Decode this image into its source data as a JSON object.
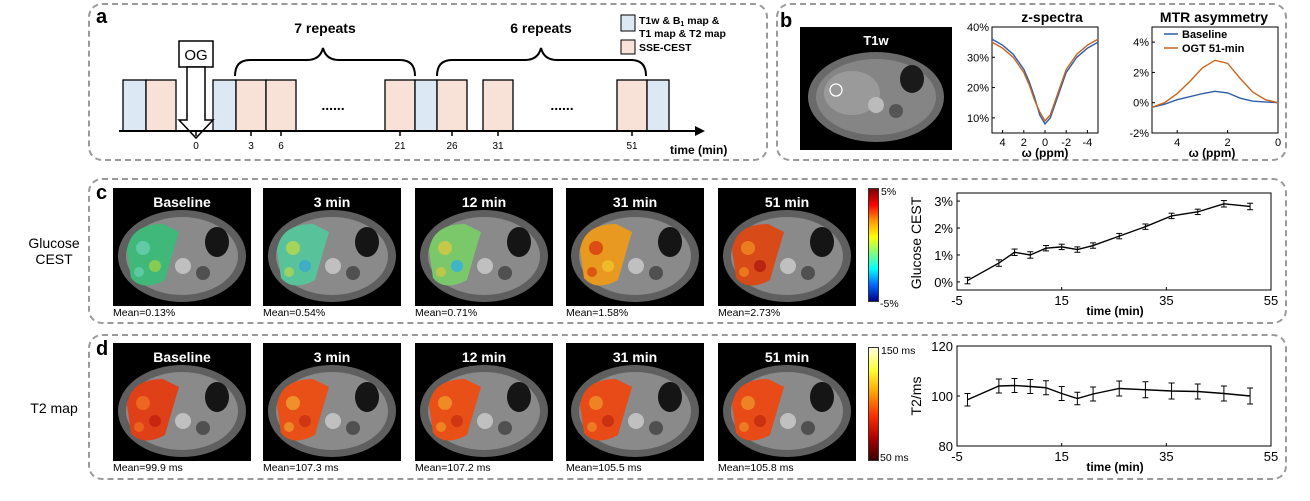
{
  "panel_a": {
    "label": "a",
    "og": "OG",
    "repeats1": "7 repeats",
    "repeats2": "6 repeats",
    "legend1_line1": "T1w & B",
    "legend1_sub": "1",
    "legend1_rest": " map &",
    "legend1_line2": "T1 map & T2 map",
    "legend2": "SSE-CEST",
    "dots": "......",
    "ticks": [
      "0",
      "3",
      "6",
      "21",
      "26",
      "31",
      "51"
    ],
    "time_label": "time (min)",
    "colors": {
      "blue": "#dce8f4",
      "pink": "#f8e1d6"
    }
  },
  "panel_b": {
    "label": "b",
    "img_title": "T1w",
    "zspec": {
      "title": "z-spectra",
      "xlabel": "ω (ppm)",
      "yticks": [
        "40%",
        "30%",
        "20%",
        "10%"
      ],
      "xticks": [
        "4",
        "2",
        "0",
        "-2",
        "-4"
      ]
    },
    "mtr": {
      "title": "MTR asymmetry",
      "xlabel": "ω (ppm)",
      "yticks": [
        "4%",
        "2%",
        "0%",
        "-2%"
      ],
      "xticks": [
        "4",
        "2",
        "0"
      ],
      "legend": [
        "Baseline",
        "OGT 51-min"
      ]
    }
  },
  "panel_c": {
    "label": "c",
    "row_label": [
      "Glucose",
      "CEST"
    ],
    "titles": [
      "Baseline",
      "3 min",
      "12 min",
      "31 min",
      "51 min"
    ],
    "means": [
      "Mean=0.13%",
      "Mean=0.54%",
      "Mean=0.71%",
      "Mean=1.58%",
      "Mean=2.73%"
    ],
    "cbar_top": "5%",
    "cbar_bottom": "-5%"
  },
  "panel_d": {
    "label": "d",
    "row_label": [
      "T2 map"
    ],
    "titles": [
      "Baseline",
      "3 min",
      "12 min",
      "31 min",
      "51 min"
    ],
    "means": [
      "Mean=99.9 ms",
      "Mean=107.3 ms",
      "Mean=107.2 ms",
      "Mean=105.5 ms",
      "Mean=105.8 ms"
    ],
    "cbar_top": "150 ms",
    "cbar_bottom": "50 ms"
  },
  "chart_data": [
    {
      "type": "line",
      "title": "z-spectra",
      "xlabel": "ω (ppm)",
      "ylabel": "",
      "xlim": [
        5,
        -5
      ],
      "ylim": [
        5,
        40
      ],
      "series": [
        {
          "name": "Baseline",
          "color": "#2c5ea8",
          "x": [
            5,
            4,
            3,
            2,
            1.5,
            1,
            0.5,
            0,
            -0.5,
            -1,
            -1.5,
            -2,
            -3,
            -4,
            -5
          ],
          "y": [
            36,
            34,
            31,
            26,
            22,
            17,
            11,
            8,
            10,
            15,
            20,
            25,
            30,
            33,
            35
          ]
        },
        {
          "name": "OGT 51-min",
          "color": "#c8641e",
          "x": [
            5,
            4,
            3,
            2,
            1.5,
            1,
            0.5,
            0,
            -0.5,
            -1,
            -1.5,
            -2,
            -3,
            -4,
            -5
          ],
          "y": [
            35,
            33,
            30,
            25,
            21,
            16,
            12,
            9,
            11,
            16,
            21,
            26,
            31,
            34,
            36
          ]
        }
      ]
    },
    {
      "type": "line",
      "title": "MTR asymmetry",
      "xlabel": "ω (ppm)",
      "ylabel": "",
      "xlim": [
        5,
        0
      ],
      "ylim": [
        -2,
        5
      ],
      "series": [
        {
          "name": "Baseline",
          "color": "#2c5ea8",
          "x": [
            5,
            4.5,
            4,
            3.5,
            3,
            2.5,
            2,
            1.5,
            1,
            0.5,
            0
          ],
          "y": [
            -0.3,
            -0.1,
            0.2,
            0.4,
            0.6,
            0.75,
            0.65,
            0.3,
            0.1,
            0.05,
            0
          ]
        },
        {
          "name": "OGT 51-min",
          "color": "#c8641e",
          "x": [
            5,
            4.5,
            4,
            3.5,
            3,
            2.5,
            2,
            1.5,
            1,
            0.5,
            0
          ],
          "y": [
            -0.3,
            0,
            0.6,
            1.4,
            2.3,
            2.8,
            2.6,
            1.6,
            0.7,
            0.2,
            0
          ]
        }
      ]
    },
    {
      "type": "line",
      "title": "",
      "xlabel": "time (min)",
      "ylabel": "Glucose CEST",
      "xlim": [
        -5,
        55
      ],
      "ylim": [
        -0.3,
        3.3
      ],
      "xticks": [
        "-5",
        "15",
        "35",
        "55"
      ],
      "yticks": [
        "0%",
        "1%",
        "2%",
        "3%"
      ],
      "x": [
        -3,
        3,
        6,
        9,
        12,
        15,
        18,
        21,
        26,
        31,
        36,
        41,
        46,
        51
      ],
      "y": [
        0.05,
        0.7,
        1.1,
        1.0,
        1.25,
        1.3,
        1.2,
        1.35,
        1.7,
        2.05,
        2.45,
        2.6,
        2.9,
        2.8
      ],
      "err": [
        0.12,
        0.12,
        0.12,
        0.12,
        0.1,
        0.1,
        0.1,
        0.1,
        0.1,
        0.1,
        0.1,
        0.1,
        0.12,
        0.12
      ]
    },
    {
      "type": "line",
      "title": "",
      "xlabel": "time (min)",
      "ylabel": "T2/ms",
      "xlim": [
        -5,
        55
      ],
      "ylim": [
        80,
        120
      ],
      "xticks": [
        "-5",
        "15",
        "35",
        "55"
      ],
      "yticks": [
        "80",
        "100",
        "120"
      ],
      "x": [
        -3,
        3,
        6,
        9,
        12,
        15,
        18,
        21,
        26,
        31,
        36,
        41,
        46,
        51
      ],
      "y": [
        98.5,
        104,
        104.2,
        103.8,
        103.3,
        101,
        99,
        100.8,
        103,
        102.5,
        102,
        101.8,
        101,
        100
      ],
      "err": [
        2.5,
        2.8,
        2.8,
        2.8,
        2.8,
        2.8,
        2.5,
        2.8,
        3,
        3.2,
        3.2,
        3,
        3,
        3.2
      ]
    }
  ]
}
